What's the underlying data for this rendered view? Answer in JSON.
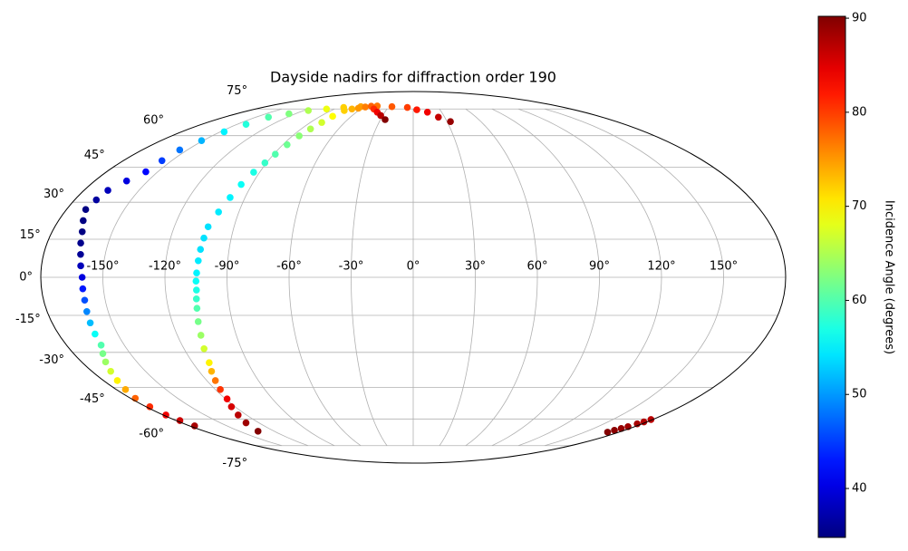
{
  "chart_data": {
    "type": "scatter",
    "projection": "mollweide",
    "title": "Dayside nadirs for diffraction order 190",
    "colormap": "jet",
    "grid": true,
    "colorbar_label": "Incidence Angle (degrees)",
    "clim": [
      34.8,
      90.2
    ],
    "cticks": [
      40,
      50,
      60,
      70,
      80,
      90
    ],
    "xlim": [
      -180,
      180
    ],
    "ylim": [
      -90,
      90
    ],
    "xticks": [
      {
        "value": -150,
        "label": "-150°"
      },
      {
        "value": -120,
        "label": "-120°"
      },
      {
        "value": -90,
        "label": "-90°"
      },
      {
        "value": -60,
        "label": "-60°"
      },
      {
        "value": -30,
        "label": "-30°"
      },
      {
        "value": 0,
        "label": "0°"
      },
      {
        "value": 30,
        "label": "30°"
      },
      {
        "value": 60,
        "label": "60°"
      },
      {
        "value": 90,
        "label": "90°"
      },
      {
        "value": 120,
        "label": "120°"
      },
      {
        "value": 150,
        "label": "150°"
      }
    ],
    "yticks": [
      {
        "value": -75,
        "label": "-75°"
      },
      {
        "value": -60,
        "label": "-60°"
      },
      {
        "value": -45,
        "label": "-45°"
      },
      {
        "value": -30,
        "label": "-30°"
      },
      {
        "value": -15,
        "label": "-15°"
      },
      {
        "value": 0,
        "label": "0°"
      },
      {
        "value": 15,
        "label": "15°"
      },
      {
        "value": 30,
        "label": "30°"
      },
      {
        "value": 45,
        "label": "45°"
      },
      {
        "value": 60,
        "label": "60°"
      },
      {
        "value": 75,
        "label": "75°"
      }
    ],
    "x": [
      -176,
      -177,
      -178,
      -177.5,
      -177,
      -174.5,
      -172,
      -169.5,
      -167,
      -164.5,
      -162,
      -161.5,
      -161,
      -160.5,
      -160,
      -160,
      -160,
      -161,
      -162,
      -163.5,
      -165,
      -167.5,
      -170,
      -168.5,
      -167,
      -162,
      -157,
      -156,
      -155,
      -151,
      -147,
      -142.5,
      -138,
      -126.5,
      -115,
      -99,
      -83,
      -64,
      -45,
      -26,
      -7,
      4,
      15,
      24,
      33,
      -134,
      -130,
      -126,
      -122.5,
      -119,
      -117,
      -115,
      -113,
      -111,
      -109.5,
      -108,
      -107,
      -106,
      -105.5,
      -105,
      -105,
      -104.7,
      -104.3,
      -104,
      -103.5,
      -103,
      -100.5,
      -98,
      -96,
      -93.5,
      -91,
      -89,
      -87,
      -85,
      -82.5,
      -80,
      -78,
      -75.6,
      -70,
      -64,
      -58,
      -52,
      -45,
      -38,
      -32,
      -25.7,
      170,
      171.5,
      173,
      174.5,
      176,
      177.5,
      178.6
    ],
    "y": [
      -63.6,
      -60.8,
      -58,
      -54,
      -50,
      -46,
      -42,
      -38,
      -34,
      -30.5,
      -27,
      -22.5,
      -18,
      -13.5,
      -9,
      -4.5,
      0,
      4.5,
      9,
      13.5,
      18,
      22.5,
      27,
      31,
      35,
      39,
      43,
      48,
      53,
      57.5,
      62,
      66,
      70,
      72,
      74,
      75,
      76,
      76.5,
      77,
      76.5,
      76,
      74.5,
      73,
      70,
      67.5,
      -66.5,
      -62,
      -58,
      -54,
      -50.3,
      -46,
      -42,
      -38,
      -34.3,
      -28.5,
      -23,
      -17.5,
      -12.2,
      -8.5,
      -5,
      -1.5,
      1.7,
      6.5,
      11,
      15.5,
      20,
      26,
      32,
      37.5,
      42.8,
      47,
      51,
      55.5,
      59.9,
      63.5,
      67,
      70.5,
      74,
      75,
      75.5,
      76.3,
      76.8,
      75,
      73,
      71,
      68.6,
      -67,
      -66,
      -65,
      -64,
      -62.5,
      -61.5,
      -60.3
    ],
    "values": [
      88,
      86,
      84,
      81,
      78,
      74,
      70,
      67,
      64,
      62,
      60,
      56,
      52,
      49,
      46,
      43,
      40,
      38,
      36,
      35.5,
      35,
      35,
      35,
      36.5,
      38,
      40,
      42,
      45,
      48,
      51.5,
      55,
      57.5,
      60,
      62.5,
      65,
      68.5,
      72,
      74.5,
      77,
      78.5,
      80,
      82,
      84,
      86.5,
      89,
      90,
      88.5,
      87,
      85.5,
      84,
      80.5,
      77,
      73.5,
      70,
      67,
      64,
      62,
      60,
      58.5,
      57,
      56,
      55,
      54.5,
      54,
      54,
      54,
      54.5,
      55,
      56,
      57,
      58.5,
      60,
      61.5,
      63,
      65,
      67,
      69.5,
      72,
      73.5,
      75,
      76.5,
      78,
      81,
      84,
      87,
      90,
      90,
      89.5,
      89,
      88.5,
      88,
      87.5,
      87
    ]
  }
}
